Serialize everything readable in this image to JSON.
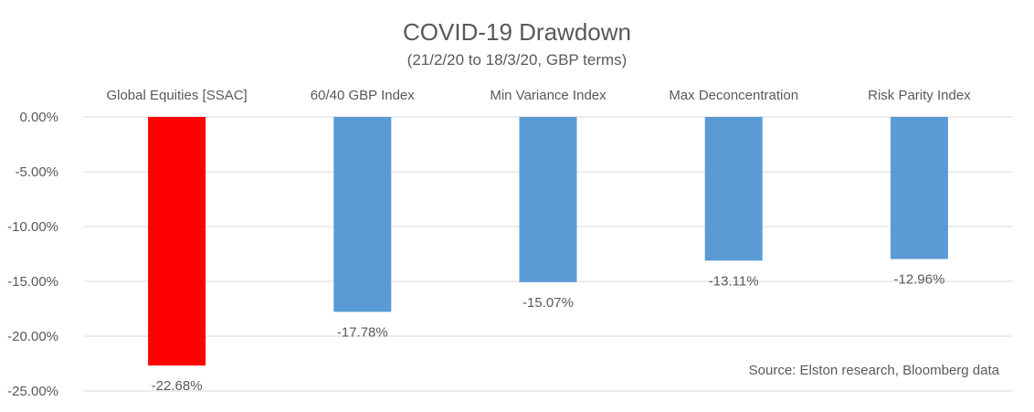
{
  "chart_data": {
    "type": "bar",
    "title": "COVID-19 Drawdown",
    "subtitle": "(21/2/20 to 18/3/20, GBP terms)",
    "categories": [
      "Global Equities [SSAC]",
      "60/40 GBP Index",
      "Min Variance Index",
      "Max Deconcentration",
      "Risk Parity Index"
    ],
    "values": [
      -22.68,
      -17.78,
      -15.07,
      -13.11,
      -12.96
    ],
    "data_labels": [
      "-22.68%",
      "-17.78%",
      "-15.07%",
      "-13.11%",
      "-12.96%"
    ],
    "colors": [
      "#ff0000",
      "#5b9bd5",
      "#5b9bd5",
      "#5b9bd5",
      "#5b9bd5"
    ],
    "ylim": [
      -25,
      0
    ],
    "yticks": [
      0,
      -5,
      -10,
      -15,
      -20,
      -25
    ],
    "ytick_labels": [
      "0.00%",
      "-5.00%",
      "-10.00%",
      "-15.00%",
      "-20.00%",
      "-25.00%"
    ],
    "xlabel": "",
    "ylabel": "",
    "grid": true,
    "category_axis_position": "top",
    "source_note": "Source: Elston research, Bloomberg data"
  }
}
